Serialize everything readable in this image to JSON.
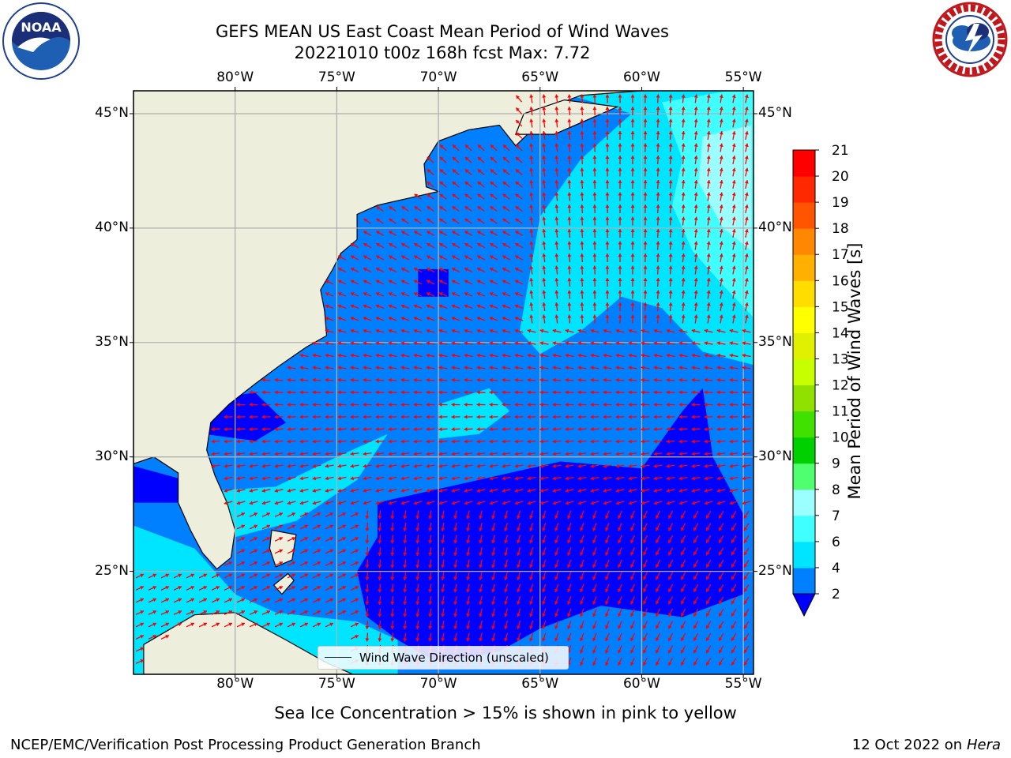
{
  "title": {
    "line1": "GEFS MEAN US East Coast Mean Period of Wind Waves",
    "line2": "20221010 t00z 168h fcst   Max: 7.72"
  },
  "logos": {
    "noaa_text": "NOAA",
    "noaa_ring": "NATIONAL OCEANIC AND ATMOSPHERIC ADMINISTRATION · U.S. DEPARTMENT OF COMMERCE",
    "nws_ring": "NATIONAL WEATHER SERVICE"
  },
  "axes": {
    "lon_ticks": [
      "80°W",
      "75°W",
      "70°W",
      "65°W",
      "60°W",
      "55°W"
    ],
    "lat_ticks": [
      "45°N",
      "40°N",
      "35°N",
      "30°N",
      "25°N"
    ],
    "lon_values": [
      -80,
      -75,
      -70,
      -65,
      -60,
      -55
    ],
    "lat_values": [
      45,
      40,
      35,
      30,
      25
    ],
    "lon_range": [
      -85,
      -54.5
    ],
    "lat_range": [
      20.5,
      46
    ]
  },
  "colorbar": {
    "label": "Mean Period of Wind Waves [s]",
    "ticks": [
      "2",
      "4",
      "6",
      "7",
      "8",
      "9",
      "10",
      "11",
      "12",
      "13",
      "14",
      "15",
      "16",
      "17",
      "18",
      "19",
      "20",
      "21"
    ],
    "tick_values": [
      2,
      4,
      6,
      7,
      8,
      9,
      10,
      11,
      12,
      13,
      14,
      15,
      16,
      17,
      18,
      19,
      20,
      21
    ],
    "extend": "min",
    "colors": [
      "#0080ff",
      "#00e5ff",
      "#40ffff",
      "#9cffff",
      "#50ff70",
      "#00d000",
      "#40e000",
      "#90e000",
      "#c8ff00",
      "#e0f000",
      "#ffff00",
      "#ffdd00",
      "#ffb000",
      "#ff8800",
      "#ff5500",
      "#ff2800",
      "#ff0000"
    ],
    "under_color": "#0000ff"
  },
  "legend": {
    "label": "Wind Wave Direction (unscaled)"
  },
  "note": "Sea Ice Concentration > 15% is shown in pink to yellow",
  "footer": {
    "left": "NCEP/EMC/Verification Post Processing Product Generation Branch",
    "right_prefix": "12 Oct 2022 on ",
    "right_host": "Hera"
  },
  "colors": {
    "land": "#eeeedc",
    "band_2_4": "#0080ff",
    "band_under_2": "#0000ff",
    "band_4_6": "#00e5ff",
    "band_6_7": "#40ffff",
    "band_7_8": "#9cffff",
    "arrow": "#ff0000",
    "grid": "#b0b0b0"
  }
}
